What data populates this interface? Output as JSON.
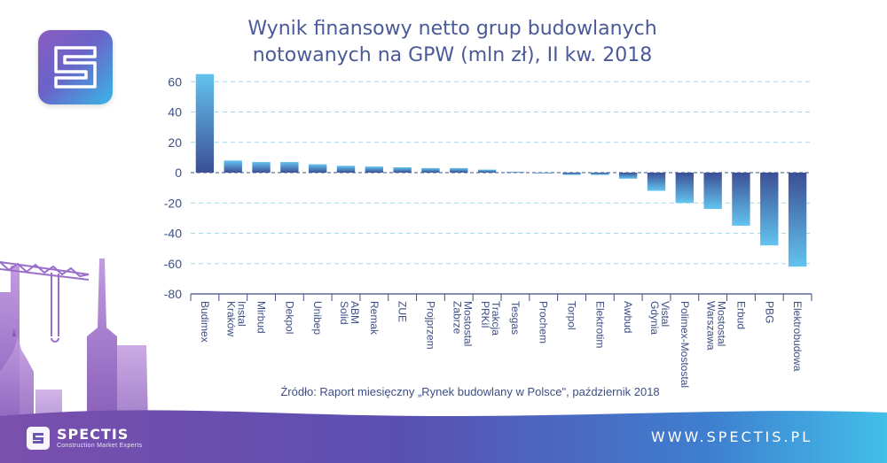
{
  "chart_data": {
    "type": "bar",
    "title": [
      "Wynik finansowy netto grup budowlanych",
      "notowanych na GPW (mln zł), II kw. 2018"
    ],
    "categories": [
      "Budimex",
      "Instal Kraków",
      "Mirbud",
      "Dekpol",
      "Unibep",
      "ABM Solid",
      "Remak",
      "ZUE",
      "Projprzem",
      "Mostostal Zabrze",
      "Trakcja PRKiI",
      "Tesgas",
      "Prochem",
      "Torpol",
      "Elektrotim",
      "Awbud",
      "Vistal Gdynia",
      "Polimex-Mostostal",
      "Mostostal Warszawa",
      "Erbud",
      "PBG",
      "Elektrobudowa"
    ],
    "values": [
      65,
      8,
      7,
      7,
      5.5,
      4.5,
      4,
      3.5,
      3,
      3,
      2,
      0.5,
      -0.5,
      -1.5,
      -1.5,
      -4,
      -12,
      -20,
      -24,
      -35,
      -48,
      -62
    ],
    "ylim": [
      -80,
      70
    ],
    "yticks": [
      -80,
      -60,
      -40,
      -20,
      0,
      20,
      40,
      60
    ],
    "grid": true,
    "bar_color_top": "#63c3ef",
    "bar_color_base": "#3b4f96"
  },
  "source": "Źródło: Raport miesięczny „Rynek budowlany w Polsce\", październik 2018",
  "footer": {
    "brand": "SPECTIS",
    "tagline": "Construction Market Experts",
    "website": "WWW.SPECTIS.PL"
  },
  "colors": {
    "accent_purple": "#8a5cc0",
    "accent_blue": "#39b6e6",
    "text": "#3d4f86"
  }
}
